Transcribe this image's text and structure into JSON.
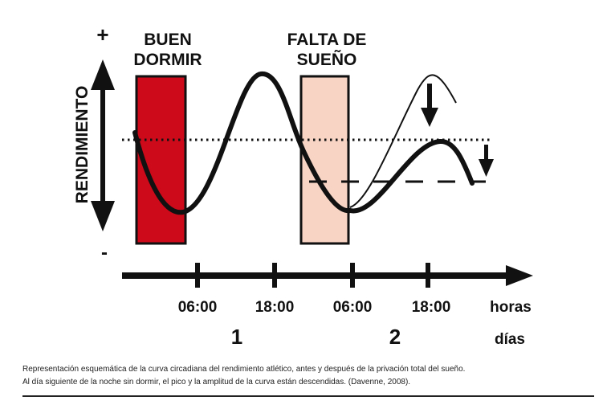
{
  "y_axis": {
    "label": "RENDIMIENTO",
    "plus": "+",
    "minus": "-"
  },
  "blocks": {
    "good_sleep": {
      "label_line1": "BUEN",
      "label_line2": "DORMIR",
      "color": "#cc0a1a"
    },
    "sleep_deprivation": {
      "label_line1": "FALTA DE",
      "label_line2": "SUEÑO",
      "color": "#f8d4c4"
    }
  },
  "x_axis": {
    "ticks": [
      "06:00",
      "18:00",
      "06:00",
      "18:00"
    ],
    "unit_hours": "horas",
    "days": [
      "1",
      "2"
    ],
    "unit_days": "días"
  },
  "caption": {
    "line1": "Representación esquemática de la curva circadiana del rendimiento atlético, antes y después de la privación total del sueño.",
    "line2": "Al día siguiente de la noche sin dormir, el pico y la amplitud de la curva están descendidas. (Davenne, 2008)."
  },
  "colors": {
    "ink": "#111111",
    "red_block": "#cc0a1a",
    "pink_block": "#f8d4c4"
  }
}
